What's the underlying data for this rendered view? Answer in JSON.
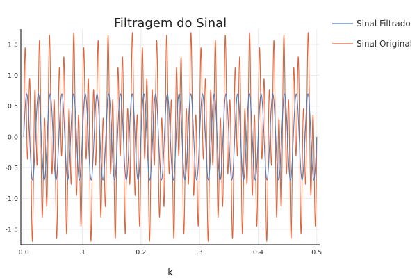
{
  "chart_data": {
    "type": "line",
    "title": "Filtragem do Sinal",
    "xlabel": "k",
    "ylabel": "",
    "xlim": [
      -0.005,
      0.505
    ],
    "ylim": [
      -1.75,
      1.75
    ],
    "xticks": [
      0.0,
      0.1,
      0.2,
      0.3,
      0.4,
      0.5
    ],
    "xtick_labels": [
      "0.0",
      ".1",
      "0.2",
      ".3",
      "0.4",
      "0.5"
    ],
    "yticks": [
      1.5,
      1.0,
      0.5,
      0.0,
      -0.5,
      -1.0,
      -1.5
    ],
    "ytick_labels": [
      "1.5",
      "1.0",
      "0.5",
      "0.0",
      "-0.5",
      "-1.0",
      "-1.5"
    ],
    "grid": true,
    "legend_position": "outside-top-right",
    "series": [
      {
        "name": "Sinal Filtrado",
        "color": "#4a7fc0",
        "description": "sinusoid amplitude 0.7, 50 Hz",
        "components": [
          {
            "amplitude": 0.7,
            "frequency_hz": 50
          }
        ]
      },
      {
        "name": "Sinal Original",
        "color": "#e0643a",
        "description": "sum of sinusoids at 50 Hz and 120 Hz",
        "components": [
          {
            "amplitude": 0.7,
            "frequency_hz": 50
          },
          {
            "amplitude": 1.0,
            "frequency_hz": 120
          }
        ]
      }
    ]
  }
}
